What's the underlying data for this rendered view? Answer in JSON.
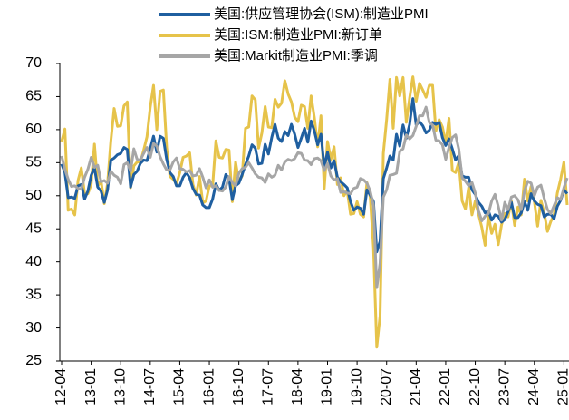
{
  "chart_data": {
    "type": "line",
    "categories": [
      "12-04",
      null,
      null,
      null,
      null,
      null,
      null,
      null,
      null,
      "13-01",
      null,
      null,
      null,
      null,
      null,
      null,
      null,
      null,
      "13-10",
      null,
      null,
      null,
      null,
      null,
      null,
      null,
      null,
      "14-07",
      null,
      null,
      null,
      null,
      null,
      null,
      null,
      null,
      "15-04",
      null,
      null,
      null,
      null,
      null,
      null,
      null,
      null,
      "16-01",
      null,
      null,
      null,
      null,
      null,
      null,
      null,
      null,
      "16-10",
      null,
      null,
      null,
      null,
      null,
      null,
      null,
      null,
      "17-07",
      null,
      null,
      null,
      null,
      null,
      null,
      null,
      null,
      "18-04",
      null,
      null,
      null,
      null,
      null,
      null,
      null,
      null,
      "19-01",
      null,
      null,
      null,
      null,
      null,
      null,
      null,
      null,
      "19-10",
      null,
      null,
      null,
      null,
      null,
      null,
      null,
      null,
      "20-07",
      null,
      null,
      null,
      null,
      null,
      null,
      null,
      null,
      "21-04",
      null,
      null,
      null,
      null,
      null,
      null,
      null,
      null,
      "22-01",
      null,
      null,
      null,
      null,
      null,
      null,
      null,
      null,
      "22-10",
      null,
      null,
      null,
      null,
      null,
      null,
      null,
      null,
      "23-07",
      null,
      null,
      null,
      null,
      null,
      null,
      null,
      null,
      "24-04",
      null,
      null,
      null,
      null,
      null,
      null,
      null,
      null,
      "25-01",
      null
    ],
    "series": [
      {
        "name": "美国:供应管理协会(ISM):制造业PMI",
        "color": "#1f5fa0",
        "values": [
          54.8,
          53.5,
          49.7,
          49.8,
          49.6,
          51.5,
          51.7,
          49.5,
          50.7,
          53.1,
          54.2,
          51.3,
          50.7,
          49.0,
          50.9,
          55.4,
          55.7,
          56.2,
          56.4,
          57.3,
          57.0,
          51.3,
          53.2,
          53.7,
          54.9,
          55.4,
          55.3,
          57.1,
          59.0,
          56.6,
          59.0,
          58.7,
          55.5,
          53.5,
          52.9,
          51.5,
          51.5,
          52.8,
          53.5,
          52.7,
          51.1,
          50.2,
          50.1,
          48.6,
          48.2,
          48.2,
          49.5,
          51.8,
          50.8,
          51.3,
          53.2,
          52.6,
          49.4,
          51.5,
          51.9,
          53.2,
          54.7,
          56.0,
          57.7,
          57.2,
          54.8,
          54.9,
          57.8,
          56.3,
          58.8,
          60.8,
          58.7,
          58.2,
          59.7,
          59.1,
          60.8,
          59.3,
          57.3,
          58.7,
          60.2,
          58.1,
          61.3,
          59.8,
          57.7,
          59.3,
          54.3,
          56.6,
          54.2,
          55.3,
          52.8,
          52.1,
          51.7,
          51.2,
          49.1,
          47.8,
          48.3,
          48.1,
          47.2,
          50.9,
          50.1,
          49.1,
          41.5,
          43.1,
          52.6,
          54.2,
          56.0,
          55.4,
          59.3,
          57.5,
          60.7,
          58.7,
          60.8,
          64.7,
          60.7,
          61.2,
          60.6,
          59.5,
          59.9,
          61.1,
          60.8,
          61.1,
          58.8,
          57.6,
          58.6,
          57.1,
          55.4,
          56.1,
          53.0,
          52.8,
          52.8,
          50.9,
          50.2,
          49.0,
          48.4,
          47.4,
          47.7,
          46.3,
          47.1,
          46.9,
          46.0,
          46.4,
          47.6,
          49.0,
          46.7,
          46.7,
          47.4,
          49.1,
          47.8,
          50.3,
          49.2,
          48.7,
          48.5,
          46.8,
          47.2,
          47.2,
          46.5,
          48.4,
          49.3,
          50.9,
          50.3
        ]
      },
      {
        "name": "美国:ISM:制造业PMI:新订单",
        "color": "#e6c34a",
        "values": [
          58.2,
          60.1,
          47.8,
          48.0,
          47.1,
          52.3,
          54.2,
          50.3,
          50.3,
          51.7,
          57.8,
          51.4,
          52.3,
          48.8,
          51.9,
          58.3,
          63.2,
          60.5,
          60.6,
          63.6,
          64.2,
          51.2,
          54.5,
          55.1,
          55.1,
          56.9,
          58.9,
          63.4,
          66.7,
          60.0,
          65.8,
          66.0,
          57.3,
          52.9,
          52.5,
          51.8,
          53.5,
          55.8,
          56.0,
          56.5,
          51.7,
          50.1,
          52.9,
          48.9,
          49.2,
          51.5,
          51.5,
          58.3,
          55.8,
          55.7,
          57.0,
          56.9,
          49.1,
          55.1,
          52.1,
          53.0,
          60.2,
          60.4,
          65.1,
          64.5,
          57.2,
          59.5,
          63.5,
          60.4,
          60.3,
          64.6,
          63.4,
          64.0,
          67.4,
          65.4,
          64.2,
          61.9,
          61.2,
          63.7,
          63.5,
          60.2,
          65.1,
          61.8,
          57.4,
          62.1,
          51.1,
          58.2,
          55.5,
          57.4,
          51.7,
          52.7,
          50.0,
          50.8,
          47.2,
          47.3,
          49.1,
          47.2,
          46.8,
          52.0,
          49.8,
          42.2,
          27.1,
          31.8,
          56.4,
          61.5,
          67.6,
          60.2,
          67.9,
          65.1,
          67.9,
          61.1,
          64.8,
          68.0,
          64.3,
          67.0,
          66.0,
          64.9,
          66.7,
          66.7,
          59.8,
          61.5,
          60.4,
          57.9,
          61.7,
          53.8,
          53.5,
          55.1,
          49.2,
          48.0,
          51.3,
          47.1,
          49.2,
          47.2,
          45.2,
          42.5,
          47.0,
          44.3,
          45.7,
          42.6,
          45.6,
          47.3,
          46.8,
          49.2,
          45.5,
          48.3,
          47.1,
          52.5,
          49.2,
          51.4,
          49.1,
          45.4,
          49.3,
          47.4,
          44.6,
          46.1,
          47.1,
          50.4,
          52.5,
          55.1,
          48.6
        ]
      },
      {
        "name": "美国:Markit制造业PMI:季调",
        "color": "#a6a6a6",
        "values": [
          56.0,
          54.0,
          52.5,
          51.4,
          51.5,
          51.1,
          51.0,
          52.8,
          54.0,
          55.8,
          54.3,
          54.6,
          52.1,
          52.3,
          51.9,
          53.7,
          53.1,
          52.8,
          51.8,
          54.7,
          55.0,
          53.7,
          57.1,
          55.5,
          55.4,
          56.4,
          57.3,
          55.8,
          57.9,
          57.5,
          55.9,
          54.8,
          53.9,
          53.9,
          55.1,
          55.7,
          54.1,
          54.0,
          53.6,
          53.8,
          53.0,
          53.1,
          54.1,
          52.8,
          51.2,
          52.4,
          51.3,
          51.5,
          50.8,
          50.7,
          51.3,
          52.9,
          52.0,
          51.5,
          53.4,
          54.1,
          54.3,
          55.0,
          54.2,
          53.3,
          52.8,
          52.7,
          52.0,
          53.3,
          52.8,
          53.1,
          54.6,
          53.9,
          55.1,
          55.5,
          55.3,
          55.6,
          56.5,
          56.4,
          55.4,
          55.3,
          54.7,
          55.6,
          55.7,
          55.3,
          53.8,
          54.9,
          53.0,
          52.4,
          52.6,
          50.5,
          50.6,
          50.4,
          50.3,
          51.1,
          51.3,
          52.6,
          52.4,
          51.9,
          50.7,
          48.5,
          36.1,
          39.8,
          49.8,
          50.9,
          53.1,
          53.2,
          53.4,
          56.7,
          57.1,
          59.2,
          58.6,
          59.1,
          60.5,
          62.1,
          62.1,
          63.4,
          61.1,
          60.7,
          58.4,
          58.3,
          57.7,
          55.5,
          57.3,
          58.8,
          59.2,
          57.0,
          52.7,
          52.2,
          51.5,
          52.0,
          50.4,
          47.7,
          46.2,
          46.9,
          47.3,
          49.2,
          50.2,
          48.4,
          46.3,
          49.0,
          47.9,
          49.8,
          50.0,
          49.4,
          47.9,
          50.7,
          52.2,
          51.9,
          50.0,
          51.3,
          51.6,
          49.6,
          47.9,
          47.3,
          48.5,
          49.7,
          49.4,
          51.2,
          52.7
        ]
      }
    ],
    "ylim": [
      25,
      70
    ],
    "yticks": [
      25,
      30,
      35,
      40,
      45,
      50,
      55,
      60,
      65,
      70
    ],
    "grid": false,
    "legend": "top"
  }
}
